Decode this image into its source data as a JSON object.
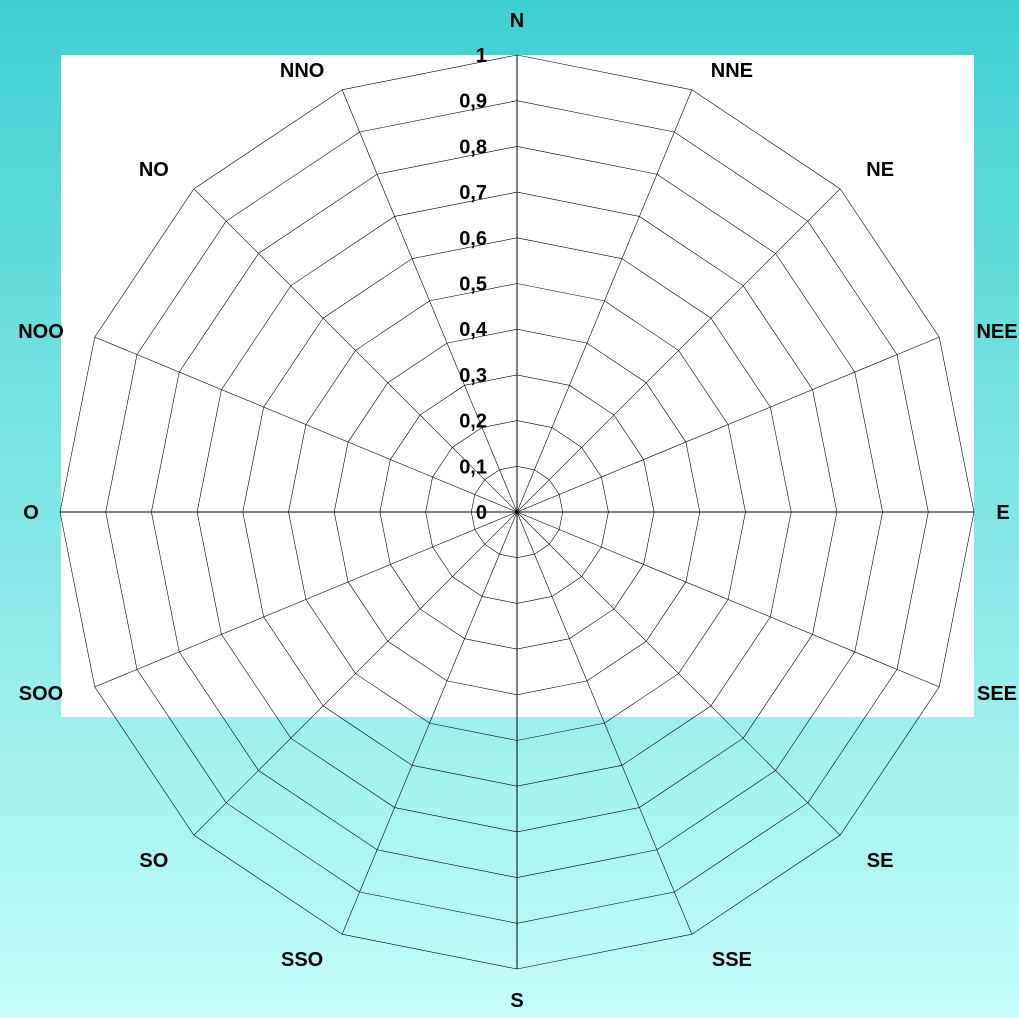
{
  "colors": {
    "background_top": "#40D0D0",
    "background_bottom": "#C4FCFC",
    "plot_background": "#FFFFFF",
    "grid": "#000000",
    "text": "#000000"
  },
  "chart_data": {
    "type": "radar",
    "directions": [
      "N",
      "NNE",
      "NE",
      "NEE",
      "E",
      "SEE",
      "SE",
      "SSE",
      "S",
      "SSO",
      "SO",
      "SOO",
      "O",
      "NOO",
      "NO",
      "NNO"
    ],
    "radial_ticks": [
      "0",
      "0,1",
      "0,2",
      "0,3",
      "0,4",
      "0,5",
      "0,6",
      "0,7",
      "0,8",
      "0,9",
      "1"
    ],
    "rlim": [
      0,
      1
    ],
    "grid": true,
    "series": []
  }
}
